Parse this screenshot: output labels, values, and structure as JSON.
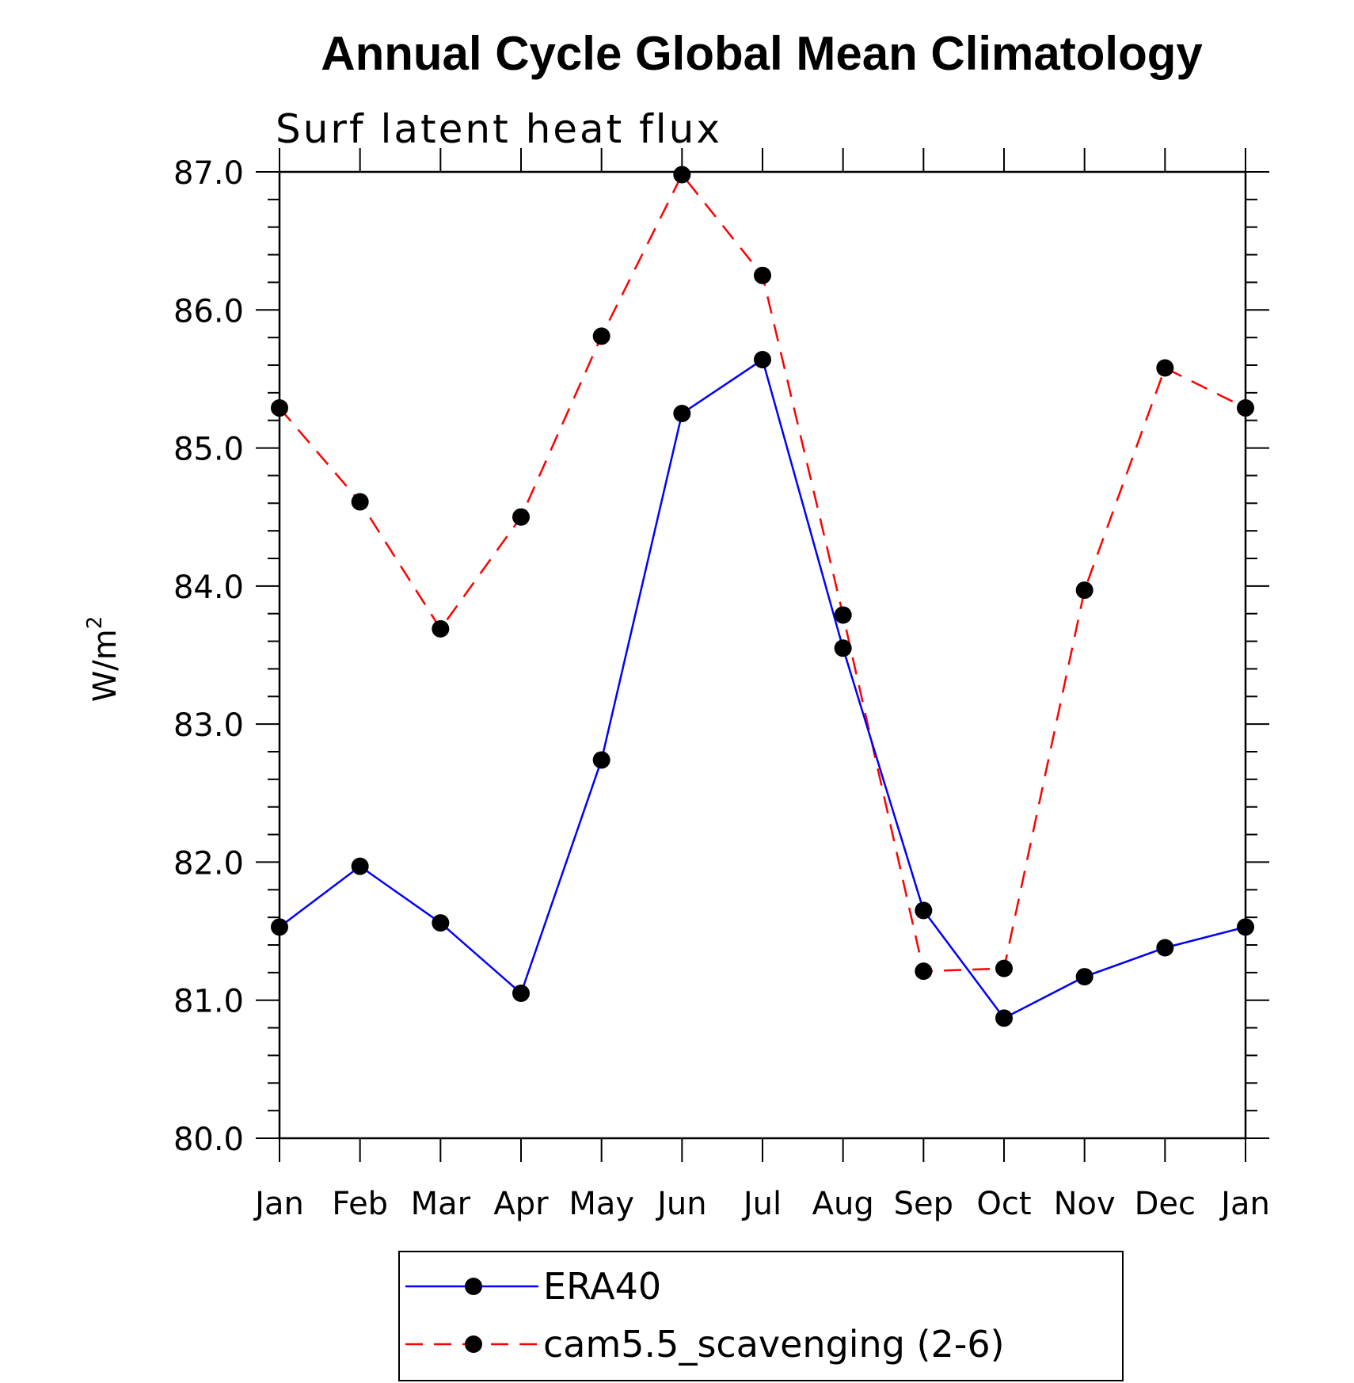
{
  "chart_data": {
    "type": "line",
    "title": "Annual Cycle Global Mean Climatology",
    "subtitle": "Surf latent heat flux",
    "ylabel": "W/m",
    "ylabel_superscript": "2",
    "xlabel": "",
    "ylim": [
      80.0,
      87.0
    ],
    "y_ticks": [
      "80.0",
      "81.0",
      "82.0",
      "83.0",
      "84.0",
      "85.0",
      "86.0",
      "87.0"
    ],
    "categories": [
      "Jan",
      "Feb",
      "Mar",
      "Apr",
      "May",
      "Jun",
      "Jul",
      "Aug",
      "Sep",
      "Oct",
      "Nov",
      "Dec",
      "Jan"
    ],
    "grid": false,
    "legend_position": "bottom",
    "series": [
      {
        "name": "ERA40",
        "color": "#0000ff",
        "dash": "solid",
        "values": [
          81.53,
          81.97,
          81.56,
          81.05,
          82.74,
          85.25,
          85.64,
          83.55,
          81.65,
          80.87,
          81.17,
          81.38,
          81.53
        ]
      },
      {
        "name": "cam5.5_scavenging (2-6)",
        "color": "#ff0000",
        "dash": "dashed",
        "values": [
          85.29,
          84.61,
          83.69,
          84.5,
          85.81,
          86.98,
          86.25,
          83.79,
          81.21,
          81.23,
          83.97,
          85.58,
          85.29
        ]
      }
    ]
  }
}
